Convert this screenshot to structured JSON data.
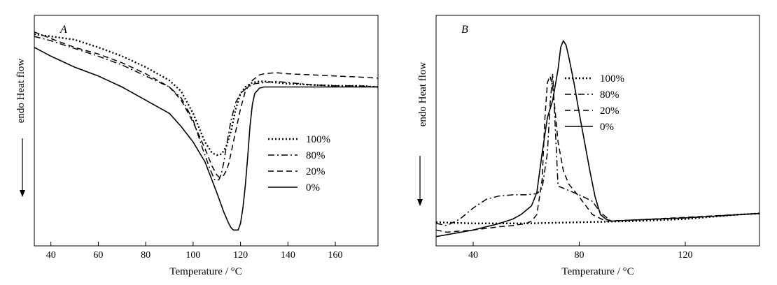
{
  "chart_data": [
    {
      "type": "line",
      "panel_label": "A",
      "xlabel": "Temperature / °C",
      "ylabel": "endo Heat flow",
      "xlim": [
        33,
        178
      ],
      "ylim": [
        0,
        100
      ],
      "x_ticks": [
        40,
        60,
        80,
        100,
        120,
        140,
        160
      ],
      "grid": false,
      "legend_position": "right",
      "series": [
        {
          "name": "100%",
          "style": "dotted",
          "color": "#000000",
          "x": [
            33,
            40,
            50,
            60,
            70,
            80,
            90,
            95,
            100,
            105,
            108,
            110,
            112,
            114,
            116,
            118,
            120,
            122,
            125,
            128,
            130,
            135,
            140,
            150,
            160,
            170,
            178
          ],
          "y": [
            94,
            93,
            91.5,
            88,
            84,
            79,
            73,
            68,
            58,
            45,
            40,
            39,
            39.5,
            43,
            50,
            60,
            67,
            70,
            72,
            72.5,
            72.5,
            72,
            71.5,
            71,
            70.5,
            70.5,
            70
          ]
        },
        {
          "name": "80%",
          "style": "dashdot",
          "color": "#000000",
          "x": [
            33,
            40,
            50,
            60,
            70,
            80,
            90,
            95,
            100,
            104,
            107,
            109,
            110,
            111,
            112,
            113,
            114,
            116,
            118,
            120,
            123,
            126,
            130,
            135,
            140,
            150,
            160,
            170,
            178
          ],
          "y": [
            93,
            91,
            87.5,
            84,
            80,
            75,
            70,
            65,
            55,
            42,
            33,
            28,
            27.5,
            28,
            31,
            36,
            43,
            55,
            63,
            67,
            70,
            71.5,
            72,
            72.5,
            72,
            71,
            70.5,
            70.5,
            70
          ]
        },
        {
          "name": "20%",
          "style": "dashed",
          "color": "#000000",
          "x": [
            33,
            40,
            50,
            60,
            70,
            80,
            90,
            95,
            100,
            105,
            108,
            110,
            111,
            112,
            113,
            114,
            115,
            116,
            118,
            120,
            122,
            125,
            128,
            130,
            135,
            140,
            150,
            160,
            170,
            178
          ],
          "y": [
            95,
            92,
            88,
            85,
            81,
            76,
            70,
            64,
            54,
            42,
            34,
            30,
            29,
            29,
            30,
            32,
            35,
            40,
            50,
            60,
            68,
            73,
            75.5,
            76,
            76.5,
            76,
            75.5,
            75,
            74.5,
            74
          ]
        },
        {
          "name": "0%",
          "style": "solid",
          "color": "#000000",
          "x": [
            33,
            40,
            50,
            60,
            70,
            80,
            90,
            95,
            100,
            105,
            110,
            113,
            115,
            116,
            117,
            118,
            119,
            120,
            121,
            122,
            123,
            124,
            125,
            126,
            128,
            130,
            140,
            150,
            160,
            170,
            178
          ],
          "y": [
            88,
            84,
            79,
            75,
            70,
            64,
            58,
            52,
            45,
            36,
            22,
            13,
            8,
            6,
            5,
            5,
            5,
            8,
            15,
            25,
            38,
            52,
            62,
            67,
            69.5,
            70,
            70,
            70,
            70,
            70,
            70
          ]
        }
      ]
    },
    {
      "type": "line",
      "panel_label": "B",
      "xlabel": "Temperature / °C",
      "ylabel": "endo Heat flow",
      "xlim": [
        26,
        148
      ],
      "ylim": [
        0,
        100
      ],
      "x_ticks": [
        40,
        80,
        120
      ],
      "grid": false,
      "legend_position": "top-right",
      "series": [
        {
          "name": "100%",
          "style": "dotted",
          "color": "#000000",
          "x": [
            26,
            40,
            60,
            80,
            100,
            110,
            120,
            130,
            140,
            148
          ],
          "y": [
            8.5,
            8,
            8,
            8.5,
            9,
            9.5,
            10,
            11,
            12,
            12.5
          ]
        },
        {
          "name": "80%",
          "style": "dashdot",
          "color": "#000000",
          "x": [
            26,
            30,
            35,
            40,
            45,
            50,
            55,
            60,
            64,
            66,
            68,
            69,
            70,
            72,
            76,
            80,
            85,
            88,
            92,
            100,
            120,
            148
          ],
          "y": [
            8,
            7,
            10,
            15,
            19,
            20.5,
            21,
            21,
            21.5,
            24,
            40,
            62,
            76,
            25,
            23,
            21,
            18,
            13,
            9,
            9.5,
            10.5,
            12.5
          ]
        },
        {
          "name": "20%",
          "style": "dashed",
          "color": "#000000",
          "x": [
            26,
            30,
            40,
            50,
            55,
            60,
            62,
            64,
            66,
            67,
            68,
            69,
            70,
            71,
            72,
            74,
            76,
            80,
            85,
            90,
            100,
            148
          ],
          "y": [
            5,
            4,
            5,
            6.5,
            7,
            8,
            9,
            12,
            28,
            55,
            72,
            75,
            70,
            58,
            45,
            32,
            26,
            20,
            12,
            9,
            9.5,
            12.5
          ]
        },
        {
          "name": "0%",
          "style": "solid",
          "color": "#000000",
          "x": [
            26,
            40,
            50,
            55,
            58,
            60,
            62,
            64,
            66,
            68,
            70,
            72,
            73,
            74,
            75,
            76,
            78,
            80,
            82,
            84,
            86,
            88,
            90,
            92,
            100,
            120,
            148
          ],
          "y": [
            2,
            5,
            8,
            10,
            12,
            14,
            16,
            22,
            40,
            56,
            64,
            78,
            88,
            91,
            89,
            84,
            72,
            58,
            45,
            32,
            20,
            12,
            10,
            9,
            9.5,
            10.5,
            12.5
          ]
        }
      ]
    }
  ]
}
